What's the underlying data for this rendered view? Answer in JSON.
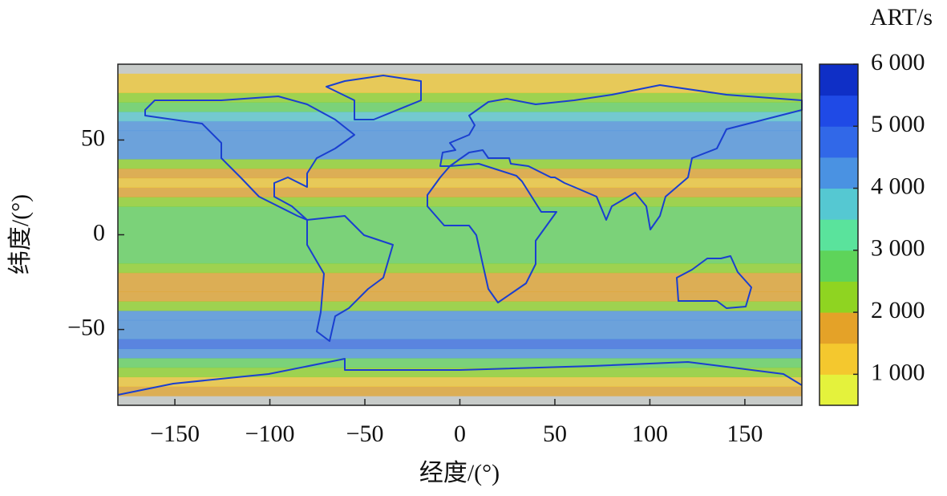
{
  "chart_data": {
    "type": "heatmap",
    "x_label": "经度/(°)",
    "y_label": "纬度/(°)",
    "colorbar_title": "ART/s",
    "xlim": [
      -180,
      180
    ],
    "ylim": [
      -90,
      90
    ],
    "xticks": [
      {
        "value": -150,
        "label": "−150"
      },
      {
        "value": -100,
        "label": "−100"
      },
      {
        "value": -50,
        "label": "−50"
      },
      0,
      50,
      100,
      150
    ],
    "yticks": [
      {
        "value": -50,
        "label": "−50"
      },
      0,
      50
    ],
    "lat_edges": [
      -90,
      -85,
      -80,
      -75,
      -70,
      -65,
      -60,
      -55,
      -45,
      -40,
      -35,
      -30,
      -20,
      -15,
      15,
      20,
      25,
      30,
      35,
      40,
      55,
      60,
      65,
      70,
      75,
      85,
      90
    ],
    "values": [
      null,
      1700,
      1500,
      2200,
      3000,
      4300,
      4800,
      4500,
      4200,
      2200,
      1600,
      1700,
      2200,
      2600,
      2300,
      1700,
      1200,
      1700,
      2500,
      4200,
      4500,
      4000,
      3000,
      2500,
      1500,
      null
    ],
    "nodata_color": "#c7cbc9",
    "clim": [
      500,
      6000
    ],
    "levels": [
      500,
      1000,
      1500,
      2000,
      2500,
      3000,
      3500,
      4000,
      4500,
      5000,
      5500,
      6000
    ],
    "colors": [
      "#e4f23c",
      "#f4c82e",
      "#e4a228",
      "#8fd421",
      "#5ed45a",
      "#5ae39c",
      "#55c8d2",
      "#4a92e2",
      "#3168e8",
      "#1f4ae6",
      "#0f2fc6"
    ],
    "cticks": [
      {
        "value": 1000,
        "label": "1 000"
      },
      {
        "value": 2000,
        "label": "2 000"
      },
      {
        "value": 3000,
        "label": "3 000"
      },
      {
        "value": 4000,
        "label": "4 000"
      },
      {
        "value": 5000,
        "label": "5 000"
      },
      {
        "value": 6000,
        "label": "6 000"
      }
    ]
  }
}
